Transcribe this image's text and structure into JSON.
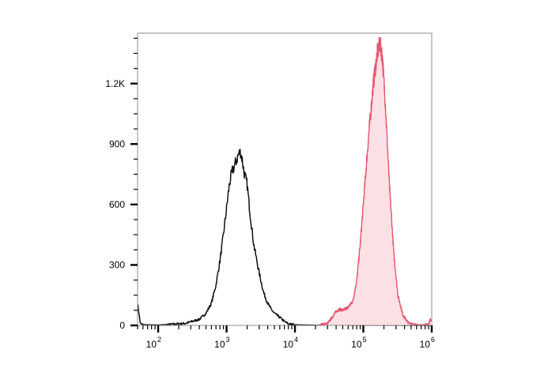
{
  "chart_data": {
    "type": "histogram",
    "x_scale": "log",
    "xlim": [
      50,
      1000000
    ],
    "ylim": [
      0,
      1450
    ],
    "xlabel": "",
    "ylabel": "",
    "title": "",
    "yticks": [
      {
        "value": 0,
        "label": "0"
      },
      {
        "value": 300,
        "label": "300"
      },
      {
        "value": 600,
        "label": "600"
      },
      {
        "value": 900,
        "label": "900"
      },
      {
        "value": 1200,
        "label": "1.2K"
      }
    ],
    "xticks": [
      {
        "value": 100,
        "base": "10",
        "exp": "2"
      },
      {
        "value": 1000,
        "base": "10",
        "exp": "3"
      },
      {
        "value": 10000,
        "base": "10",
        "exp": "4"
      },
      {
        "value": 100000,
        "base": "10",
        "exp": "5"
      },
      {
        "value": 1000000,
        "base": "10",
        "exp": "6"
      }
    ],
    "series": [
      {
        "role": "control",
        "style": "line",
        "color": "#111111",
        "points": [
          [
            50,
            110
          ],
          [
            55,
            8
          ],
          [
            60,
            4
          ],
          [
            70,
            3
          ],
          [
            100,
            2
          ],
          [
            150,
            5
          ],
          [
            200,
            8
          ],
          [
            250,
            10
          ],
          [
            300,
            18
          ],
          [
            400,
            30
          ],
          [
            500,
            60
          ],
          [
            600,
            110
          ],
          [
            700,
            200
          ],
          [
            800,
            320
          ],
          [
            900,
            450
          ],
          [
            1000,
            580
          ],
          [
            1100,
            700
          ],
          [
            1200,
            760
          ],
          [
            1300,
            790
          ],
          [
            1400,
            820
          ],
          [
            1500,
            850
          ],
          [
            1600,
            860
          ],
          [
            1700,
            820
          ],
          [
            1800,
            760
          ],
          [
            2000,
            700
          ],
          [
            2200,
            560
          ],
          [
            2500,
            400
          ],
          [
            3000,
            260
          ],
          [
            3500,
            160
          ],
          [
            4000,
            110
          ],
          [
            4500,
            80
          ],
          [
            5000,
            60
          ],
          [
            6000,
            40
          ],
          [
            7000,
            20
          ],
          [
            8000,
            8
          ],
          [
            10000,
            3
          ],
          [
            20000,
            1
          ],
          [
            1000000,
            0
          ]
        ]
      },
      {
        "role": "stained",
        "style": "filled",
        "color": "#e8566f",
        "fill": "#fbe0e5",
        "points": [
          [
            20000,
            0
          ],
          [
            30000,
            10
          ],
          [
            35000,
            40
          ],
          [
            40000,
            70
          ],
          [
            45000,
            80
          ],
          [
            50000,
            75
          ],
          [
            60000,
            90
          ],
          [
            70000,
            120
          ],
          [
            80000,
            220
          ],
          [
            90000,
            400
          ],
          [
            100000,
            600
          ],
          [
            120000,
            950
          ],
          [
            140000,
            1200
          ],
          [
            160000,
            1350
          ],
          [
            175000,
            1400
          ],
          [
            190000,
            1330
          ],
          [
            210000,
            1100
          ],
          [
            240000,
            700
          ],
          [
            280000,
            350
          ],
          [
            320000,
            150
          ],
          [
            380000,
            50
          ],
          [
            450000,
            15
          ],
          [
            550000,
            5
          ],
          [
            700000,
            3
          ],
          [
            900000,
            5
          ],
          [
            950000,
            30
          ],
          [
            1000000,
            20
          ]
        ]
      }
    ]
  }
}
